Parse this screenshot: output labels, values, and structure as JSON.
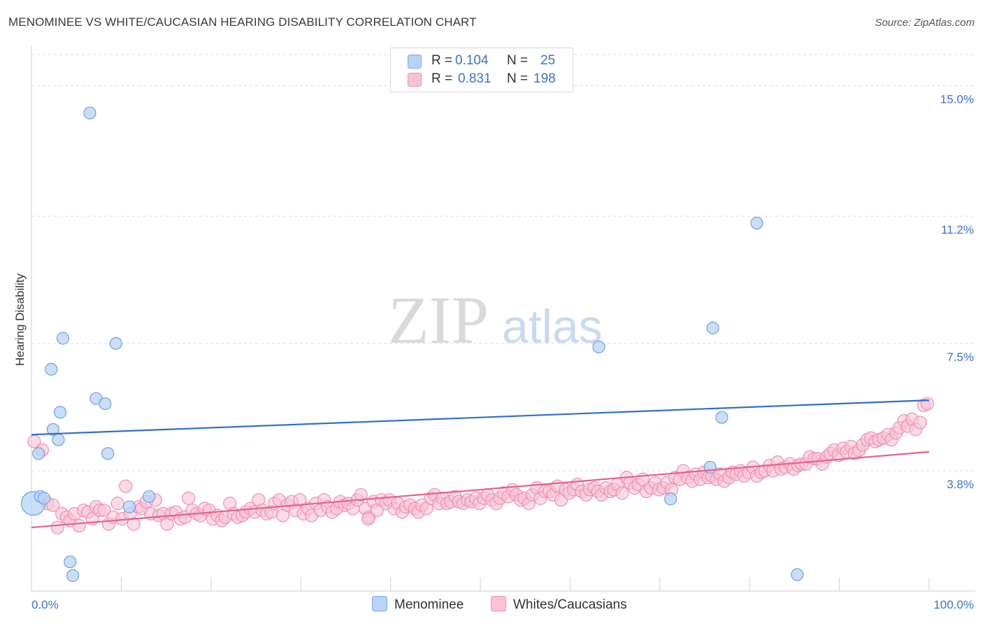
{
  "title": "MENOMINEE VS WHITE/CAUCASIAN HEARING DISABILITY CORRELATION CHART",
  "source": "Source: ZipAtlas.com",
  "watermark": {
    "part1": "ZIP",
    "part2": "atlas"
  },
  "legend": {
    "rows": [
      {
        "r_label": "R =",
        "r_value": "0.104",
        "n_label": "N =",
        "n_value": "25",
        "fill": "#b8d3f5",
        "stroke": "#7aaae6"
      },
      {
        "r_label": "R =",
        "r_value": "0.831",
        "n_label": "N =",
        "n_value": "198",
        "fill": "#f9c3d4",
        "stroke": "#ee8fb0"
      }
    ]
  },
  "chart_data": {
    "type": "scatter",
    "xlabel": "",
    "ylabel": "Hearing Disability",
    "xlim": [
      0,
      100
    ],
    "ylim": [
      0.3,
      15.9
    ],
    "x_tick_labels": [
      "0.0%",
      "100.0%"
    ],
    "y_ticks": [
      3.8,
      7.5,
      11.2,
      15.0
    ],
    "y_tick_labels": [
      "3.8%",
      "7.5%",
      "11.2%",
      "15.0%"
    ],
    "series": [
      {
        "name": "Menominee",
        "fill": "#b8d3f5",
        "stroke": "#6fa0e0",
        "line_color": "#2f6ec8",
        "trend": {
          "x": [
            0,
            100
          ],
          "y": [
            4.85,
            5.85
          ]
        },
        "points": [
          [
            0.2,
            2.85
          ],
          [
            0.8,
            4.3
          ],
          [
            1.0,
            3.05
          ],
          [
            1.4,
            3.0
          ],
          [
            2.2,
            6.75
          ],
          [
            2.4,
            5.0
          ],
          [
            3.0,
            4.7
          ],
          [
            3.2,
            5.5
          ],
          [
            3.5,
            7.65
          ],
          [
            4.3,
            1.15
          ],
          [
            4.6,
            0.75
          ],
          [
            6.5,
            14.2
          ],
          [
            7.2,
            5.9
          ],
          [
            8.2,
            5.75
          ],
          [
            8.5,
            4.3
          ],
          [
            9.4,
            7.5
          ],
          [
            10.9,
            2.75
          ],
          [
            13.1,
            3.05
          ],
          [
            63.2,
            7.4
          ],
          [
            71.2,
            2.98
          ],
          [
            75.6,
            3.9
          ],
          [
            75.9,
            7.95
          ],
          [
            76.9,
            5.35
          ],
          [
            80.8,
            11.0
          ],
          [
            85.3,
            0.78
          ]
        ]
      },
      {
        "name": "Whites/Caucasians",
        "fill": "#f9c3d4",
        "stroke": "#ee8fb0",
        "line_color": "#e2638e",
        "trend": {
          "x": [
            0,
            100
          ],
          "y": [
            2.15,
            4.35
          ]
        },
        "points": [
          [
            0.3,
            4.65
          ],
          [
            1.2,
            4.4
          ],
          [
            1.8,
            2.85
          ],
          [
            2.4,
            2.8
          ],
          [
            2.9,
            2.15
          ],
          [
            3.4,
            2.55
          ],
          [
            3.9,
            2.45
          ],
          [
            4.3,
            2.35
          ],
          [
            4.8,
            2.55
          ],
          [
            5.3,
            2.2
          ],
          [
            5.8,
            2.65
          ],
          [
            6.3,
            2.6
          ],
          [
            6.8,
            2.4
          ],
          [
            7.2,
            2.75
          ],
          [
            7.6,
            2.65
          ],
          [
            8.1,
            2.65
          ],
          [
            8.6,
            2.25
          ],
          [
            9.1,
            2.45
          ],
          [
            9.6,
            2.85
          ],
          [
            10.1,
            2.4
          ],
          [
            10.5,
            3.35
          ],
          [
            11.0,
            2.55
          ],
          [
            11.4,
            2.25
          ],
          [
            11.9,
            2.75
          ],
          [
            12.3,
            2.7
          ],
          [
            12.8,
            2.9
          ],
          [
            13.3,
            2.55
          ],
          [
            13.8,
            2.95
          ],
          [
            14.2,
            2.5
          ],
          [
            14.7,
            2.55
          ],
          [
            15.1,
            2.25
          ],
          [
            15.6,
            2.55
          ],
          [
            16.1,
            2.6
          ],
          [
            16.6,
            2.4
          ],
          [
            17.1,
            2.45
          ],
          [
            17.5,
            3.0
          ],
          [
            17.9,
            2.65
          ],
          [
            18.4,
            2.55
          ],
          [
            18.8,
            2.5
          ],
          [
            19.3,
            2.7
          ],
          [
            19.8,
            2.65
          ],
          [
            20.2,
            2.4
          ],
          [
            20.7,
            2.5
          ],
          [
            21.2,
            2.35
          ],
          [
            21.6,
            2.45
          ],
          [
            22.1,
            2.85
          ],
          [
            22.5,
            2.55
          ],
          [
            23.0,
            2.45
          ],
          [
            23.5,
            2.5
          ],
          [
            23.9,
            2.6
          ],
          [
            24.4,
            2.7
          ],
          [
            24.9,
            2.6
          ],
          [
            25.3,
            2.95
          ],
          [
            25.7,
            2.65
          ],
          [
            26.2,
            2.55
          ],
          [
            26.7,
            2.6
          ],
          [
            27.1,
            2.85
          ],
          [
            27.6,
            2.95
          ],
          [
            28.0,
            2.5
          ],
          [
            28.5,
            2.8
          ],
          [
            29.0,
            2.9
          ],
          [
            29.4,
            2.65
          ],
          [
            29.9,
            2.95
          ],
          [
            30.3,
            2.55
          ],
          [
            30.8,
            2.7
          ],
          [
            31.2,
            2.5
          ],
          [
            31.7,
            2.85
          ],
          [
            32.2,
            2.65
          ],
          [
            32.6,
            2.95
          ],
          [
            33.0,
            2.75
          ],
          [
            33.5,
            2.6
          ],
          [
            34.0,
            2.7
          ],
          [
            34.4,
            2.9
          ],
          [
            34.9,
            2.8
          ],
          [
            35.3,
            2.85
          ],
          [
            35.8,
            2.7
          ],
          [
            36.3,
            2.95
          ],
          [
            36.7,
            3.1
          ],
          [
            37.2,
            2.7
          ],
          [
            37.6,
            2.45
          ],
          [
            38.1,
            2.9
          ],
          [
            38.5,
            2.65
          ],
          [
            39.0,
            2.95
          ],
          [
            39.5,
            2.85
          ],
          [
            39.9,
            2.95
          ],
          [
            40.4,
            2.7
          ],
          [
            40.8,
            2.85
          ],
          [
            41.3,
            2.6
          ],
          [
            41.7,
            2.75
          ],
          [
            42.2,
            2.8
          ],
          [
            42.7,
            2.7
          ],
          [
            43.1,
            2.6
          ],
          [
            43.5,
            2.8
          ],
          [
            44.0,
            2.7
          ],
          [
            44.5,
            3.0
          ],
          [
            44.9,
            3.1
          ],
          [
            45.4,
            2.85
          ],
          [
            45.8,
            3.0
          ],
          [
            46.3,
            2.85
          ],
          [
            46.7,
            2.9
          ],
          [
            47.2,
            3.05
          ],
          [
            47.6,
            2.9
          ],
          [
            48.1,
            2.85
          ],
          [
            48.6,
            2.95
          ],
          [
            49.0,
            2.9
          ],
          [
            49.5,
            3.0
          ],
          [
            49.9,
            2.85
          ],
          [
            50.4,
            3.0
          ],
          [
            50.8,
            3.1
          ],
          [
            51.3,
            2.95
          ],
          [
            51.8,
            2.85
          ],
          [
            52.2,
            3.0
          ],
          [
            52.6,
            3.15
          ],
          [
            53.1,
            3.05
          ],
          [
            53.6,
            3.25
          ],
          [
            54.0,
            3.1
          ],
          [
            54.5,
            2.95
          ],
          [
            54.9,
            3.0
          ],
          [
            55.4,
            2.85
          ],
          [
            55.8,
            3.1
          ],
          [
            56.3,
            3.3
          ],
          [
            56.7,
            3.0
          ],
          [
            57.2,
            3.2
          ],
          [
            57.7,
            3.2
          ],
          [
            58.1,
            3.1
          ],
          [
            58.6,
            3.35
          ],
          [
            59.0,
            2.95
          ],
          [
            59.5,
            3.25
          ],
          [
            59.9,
            3.15
          ],
          [
            60.4,
            3.25
          ],
          [
            60.8,
            3.4
          ],
          [
            61.3,
            3.2
          ],
          [
            61.8,
            3.1
          ],
          [
            62.2,
            3.25
          ],
          [
            62.7,
            3.3
          ],
          [
            63.1,
            3.2
          ],
          [
            63.5,
            3.1
          ],
          [
            64.0,
            3.3
          ],
          [
            64.5,
            3.2
          ],
          [
            64.9,
            3.25
          ],
          [
            65.3,
            3.4
          ],
          [
            65.8,
            3.15
          ],
          [
            66.3,
            3.6
          ],
          [
            66.7,
            3.45
          ],
          [
            67.2,
            3.3
          ],
          [
            67.6,
            3.4
          ],
          [
            68.1,
            3.55
          ],
          [
            68.5,
            3.2
          ],
          [
            69.0,
            3.3
          ],
          [
            69.5,
            3.45
          ],
          [
            69.9,
            3.25
          ],
          [
            70.4,
            3.3
          ],
          [
            70.8,
            3.45
          ],
          [
            71.3,
            3.25
          ],
          [
            71.7,
            3.6
          ],
          [
            72.2,
            3.55
          ],
          [
            72.6,
            3.8
          ],
          [
            73.1,
            3.6
          ],
          [
            73.6,
            3.5
          ],
          [
            74.0,
            3.7
          ],
          [
            74.5,
            3.55
          ],
          [
            74.9,
            3.75
          ],
          [
            75.4,
            3.6
          ],
          [
            75.8,
            3.65
          ],
          [
            76.3,
            3.55
          ],
          [
            76.7,
            3.7
          ],
          [
            77.2,
            3.5
          ],
          [
            77.7,
            3.6
          ],
          [
            78.1,
            3.75
          ],
          [
            78.5,
            3.7
          ],
          [
            79.0,
            3.8
          ],
          [
            79.4,
            3.65
          ],
          [
            79.9,
            3.75
          ],
          [
            80.4,
            3.9
          ],
          [
            80.8,
            3.65
          ],
          [
            81.3,
            3.75
          ],
          [
            81.7,
            3.8
          ],
          [
            82.2,
            3.95
          ],
          [
            82.6,
            3.8
          ],
          [
            83.1,
            4.05
          ],
          [
            83.5,
            3.85
          ],
          [
            84.0,
            3.9
          ],
          [
            84.5,
            4.0
          ],
          [
            84.9,
            3.85
          ],
          [
            85.4,
            3.95
          ],
          [
            85.8,
            4.0
          ],
          [
            86.3,
            4.0
          ],
          [
            86.7,
            4.2
          ],
          [
            87.2,
            4.15
          ],
          [
            87.6,
            4.15
          ],
          [
            88.1,
            4.0
          ],
          [
            88.6,
            4.2
          ],
          [
            89.0,
            4.3
          ],
          [
            89.4,
            4.4
          ],
          [
            89.9,
            4.25
          ],
          [
            90.4,
            4.45
          ],
          [
            90.8,
            4.35
          ],
          [
            91.3,
            4.5
          ],
          [
            91.7,
            4.3
          ],
          [
            92.2,
            4.4
          ],
          [
            92.6,
            4.55
          ],
          [
            93.1,
            4.7
          ],
          [
            93.5,
            4.75
          ],
          [
            94.0,
            4.65
          ],
          [
            94.4,
            4.7
          ],
          [
            94.9,
            4.75
          ],
          [
            95.4,
            4.85
          ],
          [
            95.8,
            4.7
          ],
          [
            96.3,
            4.9
          ],
          [
            96.7,
            5.05
          ],
          [
            97.2,
            5.25
          ],
          [
            97.6,
            5.1
          ],
          [
            98.1,
            5.3
          ],
          [
            98.5,
            5.0
          ],
          [
            99.0,
            5.2
          ],
          [
            99.4,
            5.7
          ],
          [
            99.8,
            5.75
          ],
          [
            37.5,
            2.4
          ]
        ]
      }
    ]
  },
  "bottom_legend": {
    "items": [
      "Menominee",
      "Whites/Caucasians"
    ]
  }
}
